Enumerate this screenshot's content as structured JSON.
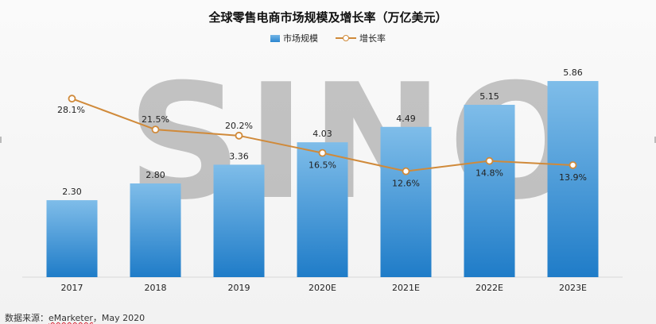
{
  "chart_data": {
    "type": "bar",
    "title": "全球零售电商市场规模及增长率（万亿美元）",
    "categories": [
      "2017",
      "2018",
      "2019",
      "2020E",
      "2021E",
      "2022E",
      "2023E"
    ],
    "series": [
      {
        "name": "市场规模",
        "type": "bar",
        "values": [
          2.3,
          2.8,
          3.36,
          4.03,
          4.49,
          5.15,
          5.86
        ],
        "labels": [
          "2.30",
          "2.80",
          "3.36",
          "4.03",
          "4.49",
          "5.15",
          "5.86"
        ],
        "color": "#2b86cf"
      },
      {
        "name": "增长率",
        "type": "line",
        "values": [
          28.1,
          21.5,
          20.2,
          16.5,
          12.6,
          14.8,
          13.9
        ],
        "labels": [
          "28.1%",
          "21.5%",
          "20.2%",
          "16.5%",
          "12.6%",
          "14.8%",
          "13.9%"
        ],
        "color": "#d08a3a"
      }
    ],
    "bar_ylim": [
      0,
      7
    ],
    "line_ylim": [
      -10,
      40
    ],
    "legend_position": "top-center",
    "grid": false
  },
  "watermark": "SINO",
  "source": {
    "prefix": "数据来源：",
    "name": "eMarketer",
    "suffix": "，May 2020"
  }
}
